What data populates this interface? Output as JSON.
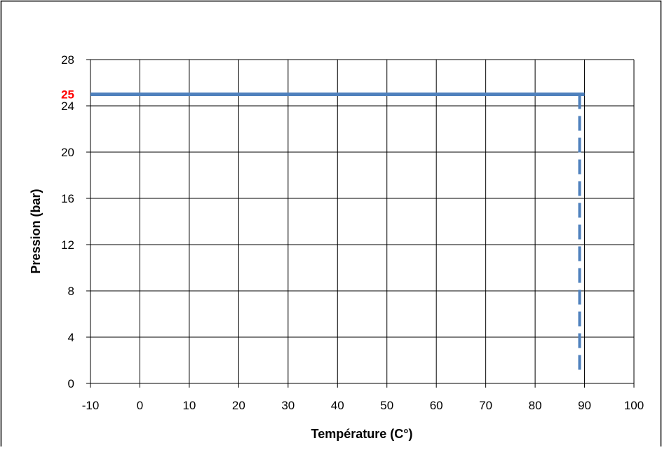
{
  "chart_data": {
    "type": "line",
    "title": "",
    "xlabel": "Température (C°)",
    "ylabel": "Pression (bar)",
    "xlim": [
      -10,
      100
    ],
    "ylim": [
      0,
      28
    ],
    "x_ticks": [
      "-10",
      "0",
      "10",
      "20",
      "30",
      "40",
      "50",
      "60",
      "70",
      "80",
      "90",
      "100"
    ],
    "y_ticks": [
      "0",
      "4",
      "8",
      "12",
      "16",
      "20",
      "24",
      "28"
    ],
    "grid": true,
    "legend": "none",
    "series": [
      {
        "style": "solid",
        "color": "#4F81BD",
        "points": [
          [
            -10,
            25
          ],
          [
            90,
            25
          ]
        ]
      },
      {
        "style": "dashed",
        "color": "#4F81BD",
        "points": [
          [
            89,
            25
          ],
          [
            89,
            1
          ]
        ]
      }
    ],
    "annotations": [
      {
        "text": "25",
        "x": -10,
        "y": 25,
        "color": "#FF0000"
      }
    ]
  }
}
